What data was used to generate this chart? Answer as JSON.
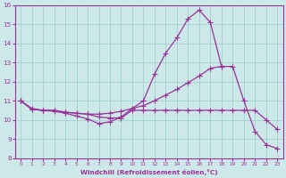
{
  "xlabel": "Windchill (Refroidissement éolien,°C)",
  "xlim": [
    -0.5,
    23.5
  ],
  "ylim": [
    8,
    16
  ],
  "xticks": [
    0,
    1,
    2,
    3,
    4,
    5,
    6,
    7,
    8,
    9,
    10,
    11,
    12,
    13,
    14,
    15,
    16,
    17,
    18,
    19,
    20,
    21,
    22,
    23
  ],
  "yticks": [
    8,
    9,
    10,
    11,
    12,
    13,
    14,
    15,
    16
  ],
  "bg_color": "#cce8e8",
  "line_color": "#993399",
  "grid_color": "#99cccc",
  "line1_x": [
    0,
    1,
    2,
    3,
    4,
    5,
    6,
    7,
    8,
    9,
    10,
    11,
    12,
    13,
    14,
    15,
    16,
    17,
    18
  ],
  "line1_y": [
    11.0,
    10.6,
    10.5,
    10.45,
    10.35,
    10.2,
    10.05,
    9.8,
    9.9,
    10.15,
    10.6,
    11.0,
    12.4,
    13.5,
    14.3,
    15.3,
    15.75,
    15.1,
    12.8
  ],
  "line2_x": [
    0,
    1,
    2,
    3,
    4,
    5,
    6,
    7,
    8,
    9,
    10,
    11,
    12,
    13,
    14,
    15,
    16,
    17,
    18,
    19,
    20,
    21,
    22,
    23
  ],
  "line2_y": [
    11.0,
    10.55,
    10.5,
    10.5,
    10.4,
    10.35,
    10.3,
    10.3,
    10.35,
    10.45,
    10.6,
    10.75,
    11.0,
    11.3,
    11.6,
    11.95,
    12.3,
    12.7,
    12.8,
    12.8,
    11.0,
    9.4,
    8.7,
    8.5
  ],
  "line3_x": [
    0,
    1,
    2,
    3,
    4,
    5,
    6,
    7,
    8,
    9,
    10,
    11,
    12,
    13,
    14,
    15,
    16,
    17,
    18,
    19,
    20,
    21,
    22,
    23
  ],
  "line3_y": [
    11.0,
    10.55,
    10.5,
    10.5,
    10.4,
    10.35,
    10.3,
    10.15,
    10.1,
    10.1,
    10.5,
    10.5,
    10.5,
    10.5,
    10.5,
    10.5,
    10.5,
    10.5,
    10.5,
    10.5,
    10.5,
    10.5,
    10.0,
    9.5
  ]
}
